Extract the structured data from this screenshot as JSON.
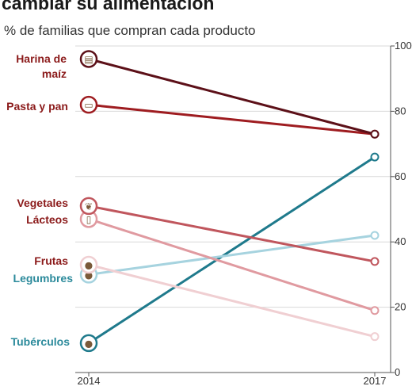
{
  "title": "cambiar su alimentación",
  "subtitle": "% de familias que compran cada producto",
  "chart_data": {
    "type": "line",
    "x": [
      "2014",
      "2017"
    ],
    "ylim": [
      0,
      100
    ],
    "yticks": [
      "0",
      "20",
      "40",
      "60",
      "80",
      "100"
    ],
    "grid": true,
    "series": [
      {
        "name": "Harina de maíz",
        "label_lines": [
          "Harina de",
          "maíz"
        ],
        "values": [
          96,
          73
        ],
        "color": "#5c1018",
        "label_color": "#8b1a1a",
        "icon": "flour-bag-icon",
        "glyph": "▤"
      },
      {
        "name": "Pasta y pan",
        "label_lines": [
          "Pasta y pan"
        ],
        "values": [
          82,
          73
        ],
        "color": "#9e1c20",
        "label_color": "#8b1a1a",
        "icon": "bread-icon",
        "glyph": "▭"
      },
      {
        "name": "Vegetales",
        "label_lines": [
          "Vegetales"
        ],
        "values": [
          51,
          34
        ],
        "color": "#c0565d",
        "label_color": "#8b1a1a",
        "icon": "pepper-icon",
        "glyph": "❦"
      },
      {
        "name": "Lácteos",
        "label_lines": [
          "Lácteos"
        ],
        "values": [
          47,
          19
        ],
        "color": "#e09aa0",
        "label_color": "#8b1a1a",
        "icon": "milk-carton-icon",
        "glyph": "▯"
      },
      {
        "name": "Frutas",
        "label_lines": [
          "Frutas"
        ],
        "values": [
          33,
          11
        ],
        "color": "#f0cfd2",
        "label_color": "#8b1a1a",
        "icon": "apple-icon",
        "glyph": "●"
      },
      {
        "name": "Legumbres",
        "label_lines": [
          "Legumbres"
        ],
        "values": [
          30,
          42
        ],
        "color": "#a6d3df",
        "label_color": "#2b8a9b",
        "icon": "bean-icon",
        "glyph": "●"
      },
      {
        "name": "Tubérculos",
        "label_lines": [
          "Tubérculos"
        ],
        "values": [
          9,
          66
        ],
        "color": "#1f7a8c",
        "label_color": "#2b8a9b",
        "icon": "potato-icon",
        "glyph": "●"
      }
    ]
  }
}
